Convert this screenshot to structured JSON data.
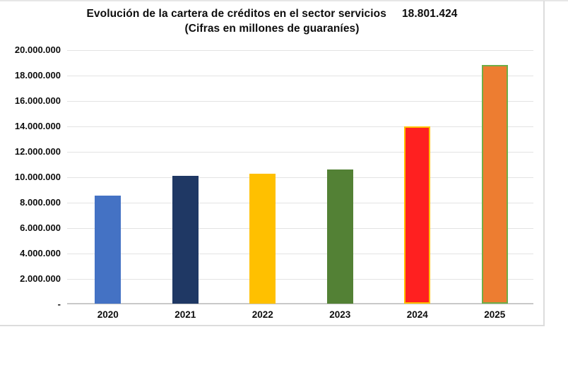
{
  "chart_data": {
    "type": "bar",
    "title": "Evolución de la cartera de créditos en el sector servicios",
    "title_annotation": "18.801.424",
    "subtitle": "(Cifras en millones de guaraníes)",
    "categories": [
      "2020",
      "2021",
      "2022",
      "2023",
      "2024",
      "2025"
    ],
    "values": [
      8500000,
      10050000,
      10200000,
      10550000,
      13940000,
      18801424
    ],
    "bar_fill_colors": [
      "#4472C4",
      "#1F3864",
      "#FFC000",
      "#538135",
      "#FF2020",
      "#ED7D31"
    ],
    "bar_border_colors": [
      null,
      null,
      null,
      null,
      "#FFC000",
      "#70AD47"
    ],
    "ylim": [
      0,
      20000000
    ],
    "yticks": [
      {
        "value": 0,
        "label": "-"
      },
      {
        "value": 2000000,
        "label": "2.000.000"
      },
      {
        "value": 4000000,
        "label": "4.000.000"
      },
      {
        "value": 6000000,
        "label": "6.000.000"
      },
      {
        "value": 8000000,
        "label": "8.000.000"
      },
      {
        "value": 10000000,
        "label": "10.000.000"
      },
      {
        "value": 12000000,
        "label": "12.000.000"
      },
      {
        "value": 14000000,
        "label": "14.000.000"
      },
      {
        "value": 16000000,
        "label": "16.000.000"
      },
      {
        "value": 18000000,
        "label": "18.000.000"
      },
      {
        "value": 20000000,
        "label": "20.000.000"
      }
    ],
    "grid": true,
    "legend": "none",
    "colors": {
      "gridline": "#e3e3e3",
      "axis_line": "#c9c9c9",
      "frame": "#dcdcdc",
      "text": "#0d0d0d",
      "background": "#ffffff"
    }
  }
}
